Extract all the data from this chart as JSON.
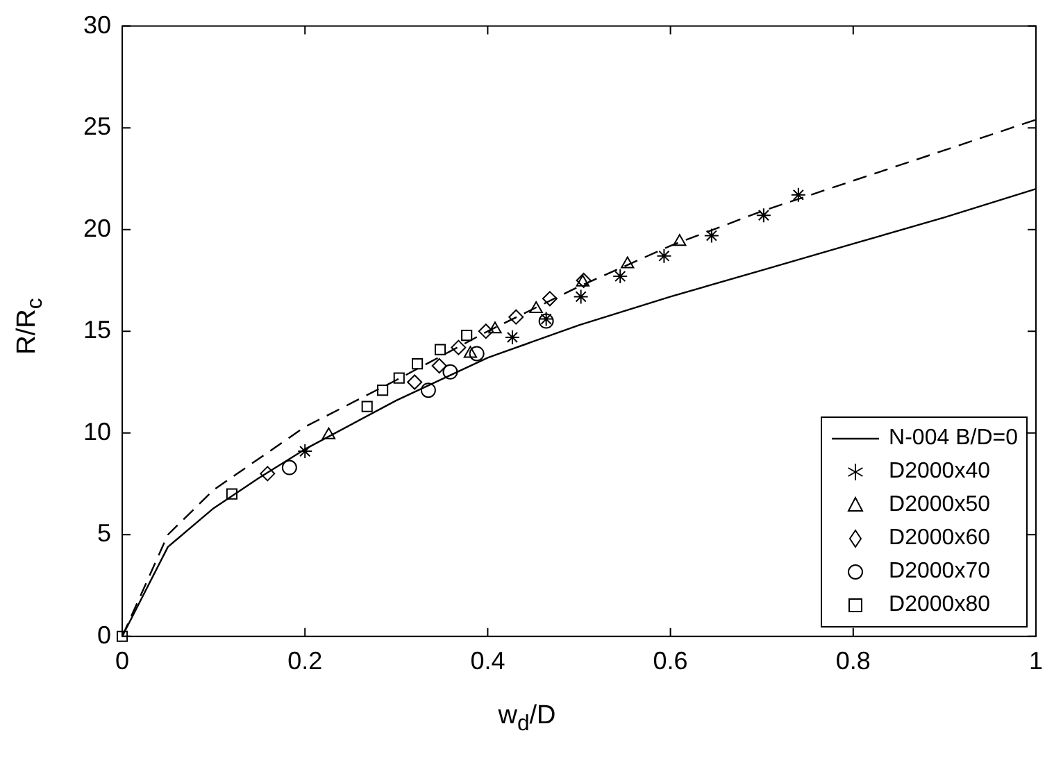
{
  "chart_data": {
    "type": "scatter",
    "xlabel": "w$_{d}$/D",
    "ylabel": "R/R$_{c}$",
    "xlim": [
      0,
      1
    ],
    "ylim": [
      0,
      30
    ],
    "xticks": [
      0,
      0.2,
      0.4,
      0.6,
      0.8,
      1
    ],
    "yticks": [
      0,
      5,
      10,
      15,
      20,
      25,
      30
    ],
    "grid": false,
    "legend": "bottom right",
    "series": [
      {
        "name": "N-004 B/D=0",
        "type": "line",
        "line_style": "solid",
        "marker": "none",
        "color": "#000000",
        "x": [
          0,
          0.05,
          0.1,
          0.15,
          0.2,
          0.3,
          0.4,
          0.5,
          0.6,
          0.7,
          0.8,
          0.9,
          1
        ],
        "values": [
          0,
          4.4,
          6.3,
          7.8,
          9.2,
          11.6,
          13.7,
          15.3,
          16.7,
          18.0,
          19.3,
          20.6,
          22.0
        ]
      },
      {
        "type": "line",
        "line_style": "dashed",
        "marker": "none",
        "color": "#000000",
        "x": [
          0,
          0.05,
          0.1,
          0.2,
          0.3,
          0.4,
          0.5,
          0.6,
          0.7,
          0.8,
          0.9,
          1
        ],
        "values": [
          0,
          5.0,
          7.2,
          10.3,
          12.6,
          15.0,
          17.2,
          19.2,
          20.9,
          22.4,
          23.9,
          25.4
        ]
      },
      {
        "name": "D2000x40",
        "marker": "cross",
        "color": "#000000",
        "x": [
          0.2,
          0.427,
          0.464,
          0.502,
          0.545,
          0.593,
          0.645,
          0.702,
          0.74
        ],
        "values": [
          9.1,
          14.7,
          15.6,
          16.7,
          17.7,
          18.7,
          19.7,
          20.7,
          21.7
        ]
      },
      {
        "name": "D2000x50",
        "marker": "triangle",
        "color": "#000000",
        "x": [
          0.226,
          0.381,
          0.408,
          0.453,
          0.504,
          0.553,
          0.61
        ],
        "values": [
          9.9,
          13.9,
          15.1,
          16.1,
          17.4,
          18.3,
          19.4
        ]
      },
      {
        "name": "D2000x60",
        "marker": "diamond",
        "color": "#000000",
        "x": [
          0.159,
          0.32,
          0.347,
          0.368,
          0.398,
          0.431,
          0.468,
          0.505
        ],
        "values": [
          8.0,
          12.5,
          13.3,
          14.2,
          15.0,
          15.7,
          16.6,
          17.5
        ]
      },
      {
        "name": "D2000x70",
        "marker": "circle",
        "color": "#000000",
        "x": [
          0.183,
          0.335,
          0.359,
          0.388,
          0.464
        ],
        "values": [
          8.3,
          12.1,
          13.0,
          13.9,
          15.5
        ]
      },
      {
        "name": "D2000x80",
        "marker": "square",
        "color": "#000000",
        "x": [
          0,
          0.12,
          0.268,
          0.285,
          0.303,
          0.323,
          0.348,
          0.377
        ],
        "values": [
          0,
          7.0,
          11.3,
          12.1,
          12.7,
          13.4,
          14.1,
          14.8
        ]
      }
    ]
  }
}
